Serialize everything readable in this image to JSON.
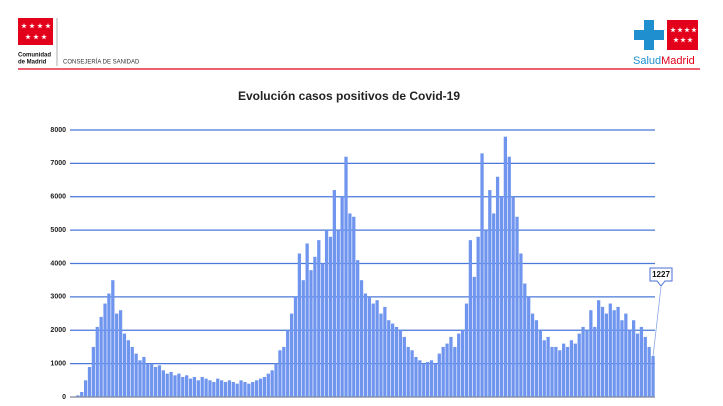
{
  "header": {
    "org_line1": "Comunidad",
    "org_line2": "de Madrid",
    "department": "CONSEJERÍA DE SANIDAD",
    "brand_part1": "Salud",
    "brand_part2": "Madrid"
  },
  "chart_data": {
    "type": "bar",
    "title": "Evolución casos positivos de Covid-19",
    "color": "#6f95ef",
    "values": [
      0,
      50,
      150,
      500,
      900,
      1500,
      2100,
      2400,
      2800,
      3100,
      3500,
      2500,
      2600,
      1900,
      1700,
      1500,
      1300,
      1100,
      1200,
      1000,
      1000,
      900,
      950,
      800,
      700,
      750,
      650,
      700,
      600,
      650,
      550,
      600,
      500,
      600,
      550,
      500,
      450,
      550,
      500,
      450,
      500,
      450,
      400,
      500,
      450,
      400,
      450,
      500,
      550,
      600,
      700,
      800,
      1000,
      1400,
      1500,
      2000,
      2500,
      3000,
      4300,
      3500,
      4600,
      3800,
      4200,
      4700,
      4000,
      5000,
      4800,
      6200,
      5000,
      6000,
      7200,
      5500,
      5400,
      4100,
      3500,
      3100,
      3000,
      2800,
      2900,
      2500,
      2700,
      2300,
      2200,
      2100,
      2000,
      1800,
      1500,
      1400,
      1200,
      1100,
      1000,
      1050,
      1100,
      1000,
      1300,
      1500,
      1600,
      1800,
      1500,
      1900,
      2000,
      2800,
      4700,
      3600,
      4800,
      7300,
      5000,
      6200,
      5500,
      6600,
      6000,
      7800,
      7200,
      6000,
      5400,
      4300,
      3400,
      3000,
      2500,
      2300,
      2000,
      1700,
      1800,
      1500,
      1500,
      1400,
      1600,
      1500,
      1700,
      1600,
      1900,
      2100,
      2000,
      2600,
      2100,
      2900,
      2700,
      2500,
      2800,
      2600,
      2700,
      2300,
      2500,
      2000,
      2300,
      1900,
      2100,
      1800,
      1500,
      1227
    ],
    "ylim": [
      0,
      8000
    ],
    "yticks": [
      0,
      1000,
      2000,
      3000,
      4000,
      5000,
      6000,
      7000,
      8000
    ],
    "grid": true,
    "grid_color": "#4a78d8"
  }
}
